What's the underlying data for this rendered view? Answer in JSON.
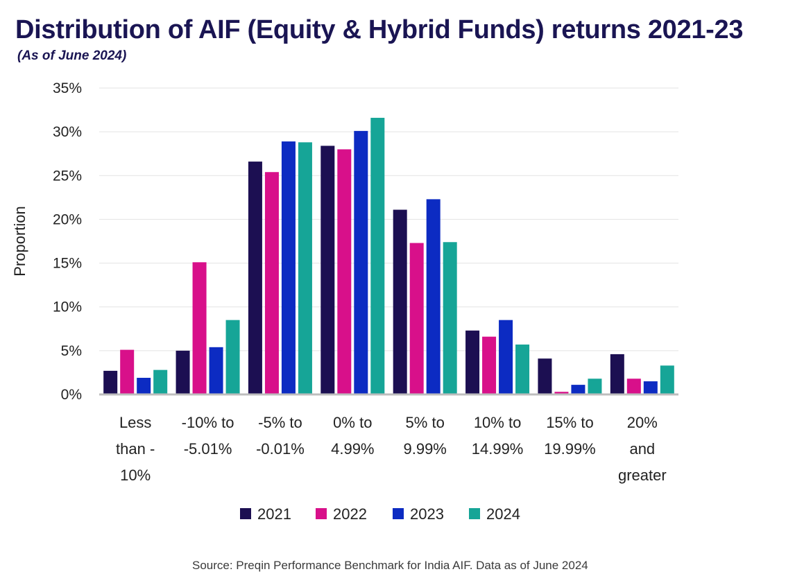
{
  "chart_data": {
    "type": "bar",
    "title": "Distribution of AIF (Equity & Hybrid Funds) returns 2021-23",
    "subtitle": "(As of June 2024)",
    "ylabel": "Proportion",
    "xlabel": "",
    "ylim": [
      0,
      35
    ],
    "yticks": [
      0,
      5,
      10,
      15,
      20,
      25,
      30,
      35
    ],
    "ytick_labels": [
      "0%",
      "5%",
      "10%",
      "15%",
      "20%",
      "25%",
      "30%",
      "35%"
    ],
    "grid": true,
    "legend_position": "bottom",
    "categories": [
      [
        "Less",
        "than -",
        "10%"
      ],
      [
        "-10% to",
        "-5.01%"
      ],
      [
        "-5% to",
        "-0.01%"
      ],
      [
        "0% to",
        "4.99%"
      ],
      [
        "5% to",
        "9.99%"
      ],
      [
        "10% to",
        "14.99%"
      ],
      [
        "15% to",
        "19.99%"
      ],
      [
        "20%",
        "and",
        "greater"
      ]
    ],
    "series": [
      {
        "name": "2021",
        "color": "#1c0f52",
        "values": [
          2.7,
          5.0,
          26.6,
          28.4,
          21.1,
          7.3,
          4.1,
          4.6
        ]
      },
      {
        "name": "2022",
        "color": "#d8108a",
        "values": [
          5.1,
          15.1,
          25.4,
          28.0,
          17.3,
          6.6,
          0.3,
          1.8
        ]
      },
      {
        "name": "2023",
        "color": "#0c2bc2",
        "values": [
          1.9,
          5.4,
          28.9,
          30.1,
          22.3,
          8.5,
          1.1,
          1.5
        ]
      },
      {
        "name": "2024",
        "color": "#16a597",
        "values": [
          2.8,
          8.5,
          28.8,
          31.6,
          17.4,
          5.7,
          1.8,
          3.3
        ]
      }
    ]
  },
  "source": "Source: Preqin Performance Benchmark for India AIF. Data as of June 2024"
}
